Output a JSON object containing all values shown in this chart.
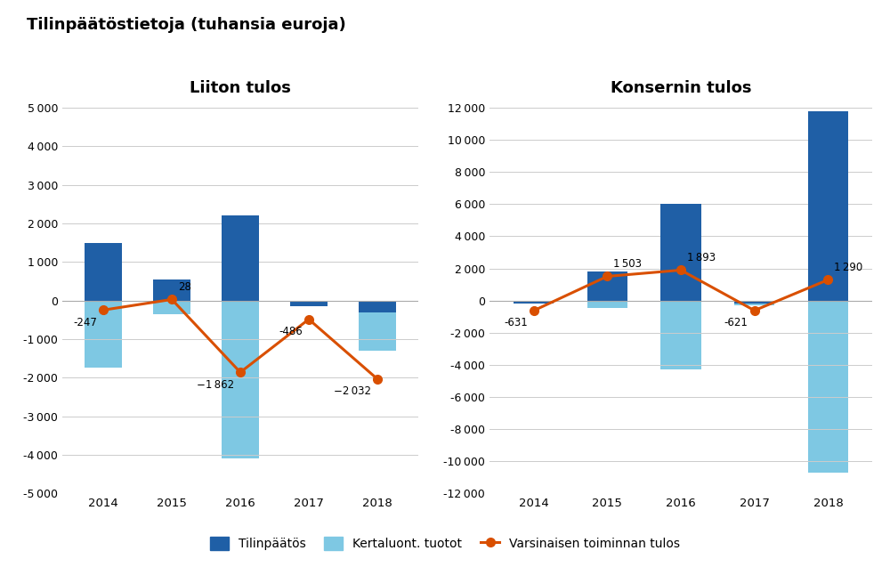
{
  "title": "Tilinpäätöstietoja (tuhansia euroja)",
  "left_chart_title": "Liiton tulos",
  "right_chart_title": "Konsernin tulos",
  "years": [
    2014,
    2015,
    2016,
    2017,
    2018
  ],
  "left_tilinpaatos": [
    1500,
    550,
    2200,
    -150,
    -300
  ],
  "left_kertaluont": [
    -1750,
    -350,
    -4100,
    -150,
    -1300
  ],
  "left_varsinainen": [
    -247,
    28,
    -1862,
    -486,
    -2032
  ],
  "right_tilinpaatos": [
    -200,
    1800,
    6000,
    -200,
    11800
  ],
  "right_kertaluont": [
    0,
    -450,
    -4300,
    -300,
    -10700
  ],
  "right_varsinainen": [
    -631,
    1503,
    1893,
    -621,
    1290
  ],
  "left_ylim": [
    -5000,
    5000
  ],
  "right_ylim": [
    -12000,
    12000
  ],
  "left_yticks": [
    -5000,
    -4000,
    -3000,
    -2000,
    -1000,
    0,
    1000,
    2000,
    3000,
    4000,
    5000
  ],
  "right_yticks": [
    -12000,
    -10000,
    -8000,
    -6000,
    -4000,
    -2000,
    0,
    2000,
    4000,
    6000,
    8000,
    10000,
    12000
  ],
  "bar_dark_blue": "#1f5fa6",
  "bar_light_blue": "#7ec8e3",
  "line_color": "#d94f00",
  "background_color": "#ffffff",
  "legend_tilinpaatos": "Tilinpäätös",
  "legend_kertaluont": "Kertaluont. tuotot",
  "legend_varsinainen": "Varsinaisen toiminnan tulos",
  "label_fontsize": 8.5,
  "bar_width": 0.55
}
